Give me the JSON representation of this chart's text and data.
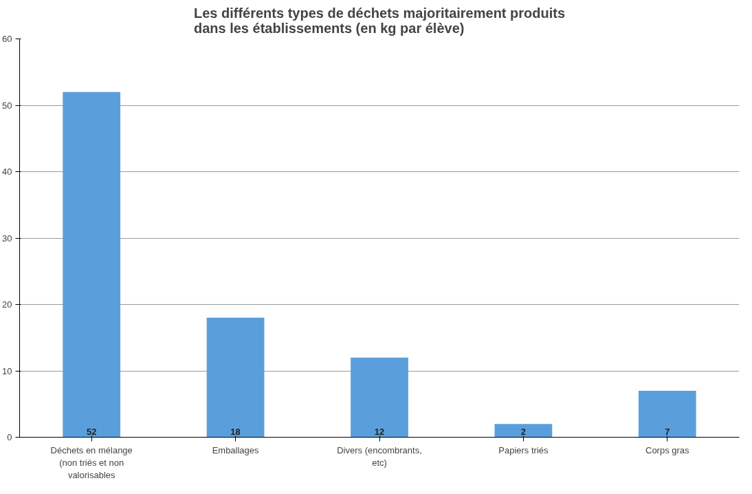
{
  "chart_data": {
    "type": "bar",
    "title": "Les différents types de déchets majoritairement produits dans les établissements (en kg par élève)",
    "categories": [
      "Déchets en mélange (non triés et non valorisables",
      "Emballages",
      "Divers (encombrants, etc)",
      "Papiers triés",
      "Corps gras"
    ],
    "values": [
      52,
      18,
      12,
      2,
      7
    ],
    "color": "#5a9fdc",
    "ylim": [
      0,
      60
    ],
    "yticks": [
      0,
      10,
      20,
      30,
      40,
      50,
      60
    ],
    "grid": "y",
    "data_labels": true
  }
}
